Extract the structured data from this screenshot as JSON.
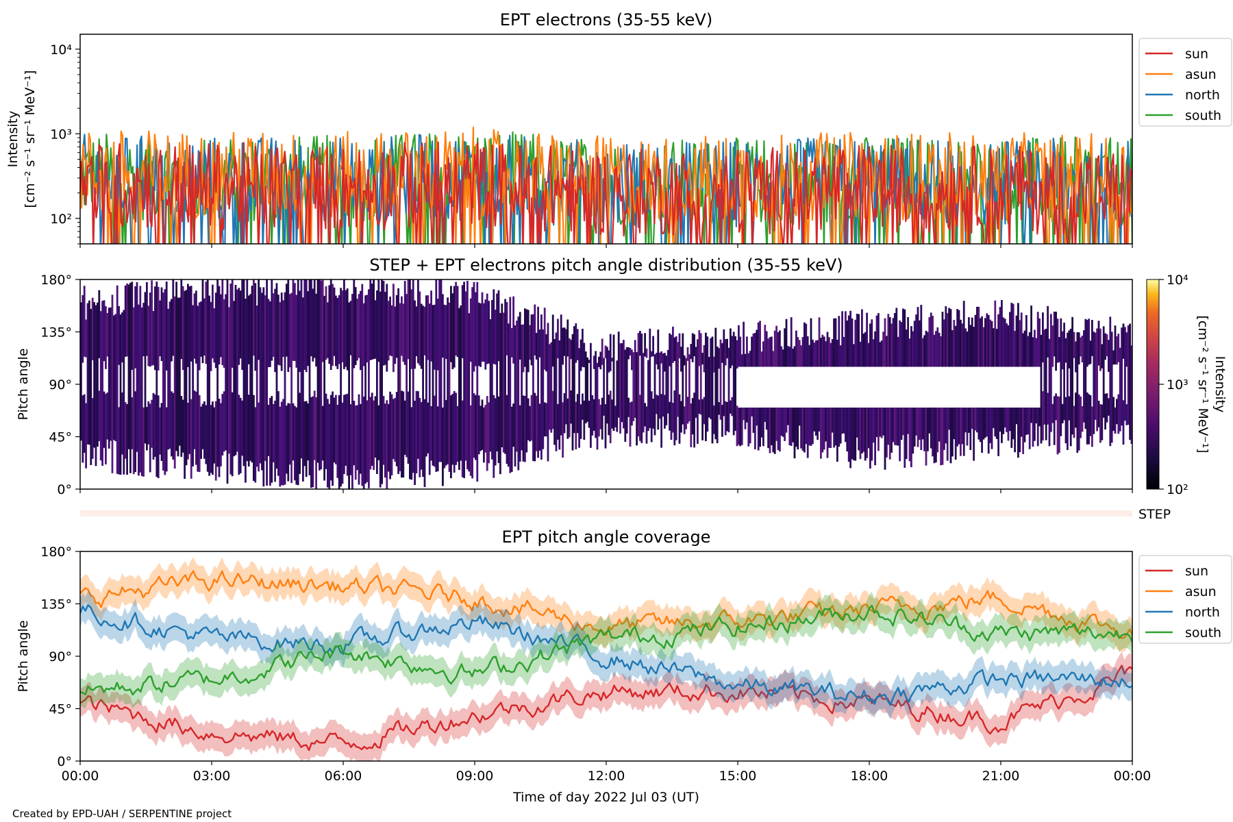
{
  "figure": {
    "credit": "Created by EPD-UAH / SERPENTINE project",
    "xlabel": "Time of day 2022 Jul 03 (UT)",
    "xticks": [
      "00:00",
      "03:00",
      "06:00",
      "09:00",
      "12:00",
      "15:00",
      "18:00",
      "21:00",
      "00:00"
    ]
  },
  "panel1": {
    "title": "EPT electrons (35-55 keV)",
    "ylabel_line1": "Intensity",
    "ylabel_line2": "[cm⁻² s⁻¹ sr⁻¹ MeV⁻¹]",
    "legend": [
      "sun",
      "asun",
      "north",
      "south"
    ]
  },
  "panel2": {
    "title": "STEP + EPT electrons pitch angle distribution (35-55 keV)",
    "ylabel": "Pitch angle",
    "yticks": [
      "0°",
      "45°",
      "90°",
      "135°",
      "180°"
    ],
    "colorbar_label_line1": "Intensity",
    "colorbar_label_line2": "[cm⁻² s⁻¹ sr⁻¹ MeV⁻¹]",
    "colorbar_ticks": [
      "10²",
      "10³",
      "10⁴"
    ]
  },
  "step_strip": {
    "label": "STEP"
  },
  "panel3": {
    "title": "EPT pitch angle coverage",
    "ylabel": "Pitch angle",
    "yticks": [
      "0°",
      "45°",
      "90°",
      "135°",
      "180°"
    ],
    "legend": [
      "sun",
      "asun",
      "north",
      "south"
    ]
  },
  "colors": {
    "sun": "#d62728",
    "asun": "#ff7f0e",
    "north": "#1f77b4",
    "south": "#2ca02c"
  },
  "chart_data": [
    {
      "type": "line",
      "title": "EPT electrons (35-55 keV)",
      "xlabel": "Time of day 2022 Jul 03 (UT)",
      "ylabel": "Intensity [cm⁻² s⁻¹ sr⁻¹ MeV⁻¹]",
      "yscale": "log",
      "ylim": [
        50,
        15000
      ],
      "x": [
        "00:00",
        "03:00",
        "06:00",
        "09:00",
        "12:00",
        "15:00",
        "18:00",
        "21:00",
        "24:00"
      ],
      "series": [
        {
          "name": "sun",
          "values": [
            250,
            240,
            230,
            260,
            200,
            210,
            230,
            220,
            200
          ]
        },
        {
          "name": "asun",
          "values": [
            350,
            330,
            320,
            360,
            280,
            300,
            320,
            310,
            300
          ]
        },
        {
          "name": "north",
          "values": [
            300,
            290,
            280,
            320,
            250,
            260,
            280,
            270,
            260
          ]
        },
        {
          "name": "south",
          "values": [
            320,
            300,
            290,
            350,
            260,
            270,
            290,
            280,
            270
          ]
        }
      ],
      "legend_position": "outside-right",
      "grid": false
    },
    {
      "type": "heatmap",
      "title": "STEP + EPT electrons pitch angle distribution (35-55 keV)",
      "xlabel": "Time of day 2022 Jul 03 (UT)",
      "ylabel": "Pitch angle",
      "ylim": [
        0,
        180
      ],
      "colorscale": "inferno",
      "clim": [
        100,
        10000
      ],
      "cscale": "log",
      "x": [
        "00:00",
        "03:00",
        "06:00",
        "09:00",
        "12:00",
        "15:00",
        "18:00",
        "21:00",
        "24:00"
      ],
      "coverage_low_deg": [
        30,
        20,
        10,
        20,
        50,
        50,
        30,
        40,
        50
      ],
      "coverage_high_deg": [
        160,
        170,
        175,
        165,
        120,
        130,
        140,
        150,
        130
      ]
    },
    {
      "type": "line",
      "title": "EPT pitch angle coverage",
      "xlabel": "Time of day 2022 Jul 03 (UT)",
      "ylabel": "Pitch angle",
      "ylim": [
        0,
        180
      ],
      "x": [
        "00:00",
        "03:00",
        "06:00",
        "09:00",
        "12:00",
        "15:00",
        "18:00",
        "21:00",
        "24:00"
      ],
      "series": [
        {
          "name": "sun",
          "values": [
            50,
            25,
            15,
            40,
            60,
            60,
            50,
            35,
            75
          ]
        },
        {
          "name": "asun",
          "values": [
            140,
            155,
            150,
            140,
            115,
            120,
            130,
            140,
            110
          ]
        },
        {
          "name": "north",
          "values": [
            130,
            105,
            100,
            120,
            90,
            65,
            55,
            70,
            70
          ]
        },
        {
          "name": "south",
          "values": [
            60,
            70,
            95,
            75,
            105,
            115,
            130,
            110,
            110
          ]
        }
      ],
      "band_halfwidth_deg": 12,
      "legend_position": "outside-right",
      "grid": false
    }
  ]
}
